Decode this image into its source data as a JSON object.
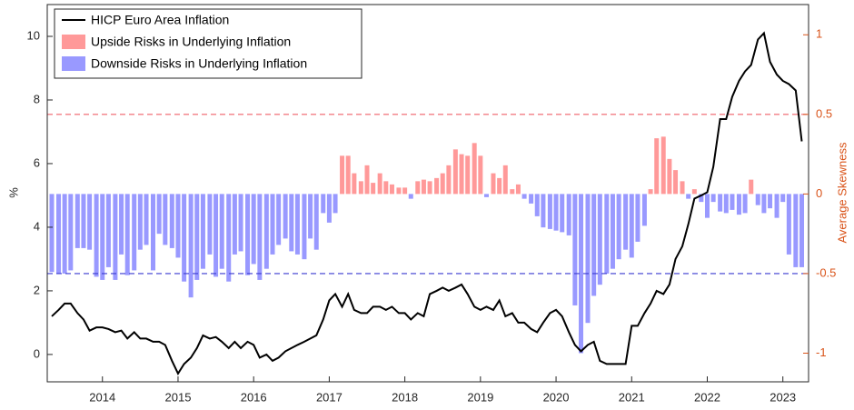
{
  "chart_data": {
    "type": "combo",
    "ylabel": "%",
    "y2label": "Average Skewness",
    "xlim": [
      2013.27,
      2023.34
    ],
    "xticks": [
      2014,
      2015,
      2016,
      2017,
      2018,
      2019,
      2020,
      2021,
      2022,
      2023
    ],
    "ylim": [
      -0.86,
      11
    ],
    "yticks": [
      0,
      2,
      4,
      6,
      8,
      10
    ],
    "y2lim": [
      -1.18,
      1.19
    ],
    "y2ticks": [
      -1,
      -0.5,
      0,
      0.5,
      1
    ],
    "y2color": "#d95319",
    "legend": "upper left",
    "reference_lines": [
      {
        "axis": "y2",
        "value": 0.5,
        "color": "#f0606a"
      },
      {
        "axis": "y2",
        "value": -0.5,
        "color": "#3a3ad0"
      }
    ],
    "x": [
      2013.33,
      2013.42,
      2013.5,
      2013.58,
      2013.67,
      2013.75,
      2013.83,
      2013.92,
      2014,
      2014.08,
      2014.17,
      2014.25,
      2014.33,
      2014.42,
      2014.5,
      2014.58,
      2014.67,
      2014.75,
      2014.83,
      2014.92,
      2015,
      2015.08,
      2015.17,
      2015.25,
      2015.33,
      2015.42,
      2015.5,
      2015.58,
      2015.67,
      2015.75,
      2015.83,
      2015.92,
      2016,
      2016.08,
      2016.17,
      2016.25,
      2016.33,
      2016.42,
      2016.5,
      2016.58,
      2016.67,
      2016.75,
      2016.83,
      2016.92,
      2017,
      2017.08,
      2017.17,
      2017.25,
      2017.33,
      2017.42,
      2017.5,
      2017.58,
      2017.67,
      2017.75,
      2017.83,
      2017.92,
      2018,
      2018.08,
      2018.17,
      2018.25,
      2018.33,
      2018.42,
      2018.5,
      2018.58,
      2018.67,
      2018.75,
      2018.83,
      2018.92,
      2019,
      2019.08,
      2019.17,
      2019.25,
      2019.33,
      2019.42,
      2019.5,
      2019.58,
      2019.67,
      2019.75,
      2019.83,
      2019.92,
      2020,
      2020.08,
      2020.17,
      2020.25,
      2020.33,
      2020.42,
      2020.5,
      2020.58,
      2020.67,
      2020.75,
      2020.83,
      2020.92,
      2021,
      2021.08,
      2021.17,
      2021.25,
      2021.33,
      2021.42,
      2021.5,
      2021.58,
      2021.67,
      2021.75,
      2021.83,
      2021.92,
      2022,
      2022.08,
      2022.17,
      2022.25,
      2022.33,
      2022.42,
      2022.5,
      2022.58,
      2022.67,
      2022.75,
      2022.83,
      2022.92,
      2023,
      2023.08,
      2023.17,
      2023.25
    ],
    "series": [
      {
        "name": "HICP Euro Area Inflation",
        "type": "line",
        "color": "#000000",
        "values": [
          1.2,
          1.4,
          1.6,
          1.6,
          1.3,
          1.1,
          0.75,
          0.85,
          0.85,
          0.8,
          0.7,
          0.75,
          0.5,
          0.7,
          0.5,
          0.5,
          0.4,
          0.4,
          0.3,
          -0.2,
          -0.6,
          -0.3,
          -0.1,
          0.2,
          0.6,
          0.5,
          0.55,
          0.4,
          0.2,
          0.4,
          0.2,
          0.4,
          0.3,
          -0.1,
          0.0,
          -0.2,
          -0.1,
          0.1,
          0.2,
          0.3,
          0.4,
          0.5,
          0.6,
          1.1,
          1.7,
          1.9,
          1.5,
          1.9,
          1.4,
          1.3,
          1.3,
          1.5,
          1.5,
          1.4,
          1.5,
          1.3,
          1.3,
          1.1,
          1.3,
          1.2,
          1.9,
          2.0,
          2.1,
          2.0,
          2.1,
          2.2,
          1.9,
          1.5,
          1.4,
          1.5,
          1.4,
          1.7,
          1.2,
          1.3,
          1.0,
          1.0,
          0.8,
          0.7,
          1.0,
          1.3,
          1.4,
          1.2,
          0.7,
          0.3,
          0.1,
          0.3,
          0.4,
          -0.2,
          -0.3,
          -0.3,
          -0.3,
          -0.3,
          0.9,
          0.9,
          1.3,
          1.6,
          2.0,
          1.9,
          2.2,
          3.0,
          3.4,
          4.1,
          4.9,
          5.0,
          5.1,
          5.9,
          7.4,
          7.4,
          8.1,
          8.6,
          8.9,
          9.1,
          9.9,
          10.1,
          9.2,
          8.8,
          8.6,
          8.5,
          8.3,
          6.7
        ]
      },
      {
        "name": "Upside Risks in Underlying Inflation",
        "type": "bar",
        "axis": "y2",
        "color": "#ff9999",
        "values": [
          null,
          null,
          null,
          null,
          null,
          null,
          null,
          null,
          null,
          null,
          null,
          null,
          null,
          null,
          null,
          null,
          null,
          null,
          null,
          null,
          null,
          null,
          null,
          null,
          null,
          null,
          null,
          null,
          null,
          null,
          null,
          null,
          null,
          null,
          null,
          null,
          null,
          null,
          null,
          null,
          null,
          null,
          null,
          null,
          null,
          null,
          0.24,
          0.24,
          0.13,
          0.08,
          0.18,
          0.07,
          0.13,
          0.08,
          0.06,
          0.04,
          0.04,
          null,
          0.08,
          0.09,
          0.08,
          0.1,
          0.13,
          0.18,
          0.28,
          0.25,
          0.24,
          0.32,
          0.24,
          null,
          0.13,
          0.1,
          0.18,
          0.03,
          0.06,
          null,
          null,
          null,
          null,
          null,
          null,
          null,
          null,
          null,
          null,
          null,
          null,
          null,
          null,
          null,
          null,
          null,
          null,
          null,
          null,
          0.03,
          0.35,
          0.36,
          0.22,
          0.15,
          0.08,
          null,
          0.03,
          null,
          null,
          null,
          null,
          null,
          null,
          null,
          null,
          0.09,
          null,
          null,
          null,
          null,
          null,
          null,
          null,
          null
        ]
      },
      {
        "name": "Downside Risks in Underlying Inflation",
        "type": "bar",
        "axis": "y2",
        "color": "#9999ff",
        "values": [
          -0.49,
          -0.5,
          -0.5,
          -0.48,
          -0.34,
          -0.34,
          -0.35,
          -0.52,
          -0.54,
          -0.46,
          -0.54,
          -0.38,
          -0.51,
          -0.48,
          -0.35,
          -0.32,
          -0.48,
          -0.25,
          -0.32,
          -0.34,
          -0.4,
          -0.55,
          -0.65,
          -0.54,
          -0.47,
          -0.38,
          -0.52,
          -0.47,
          -0.55,
          -0.38,
          -0.36,
          -0.51,
          -0.44,
          -0.54,
          -0.47,
          -0.38,
          -0.32,
          -0.28,
          -0.36,
          -0.38,
          -0.41,
          -0.28,
          -0.35,
          -0.12,
          -0.18,
          -0.12,
          null,
          null,
          null,
          null,
          null,
          null,
          null,
          null,
          null,
          null,
          null,
          -0.03,
          null,
          null,
          null,
          null,
          null,
          null,
          null,
          null,
          null,
          null,
          null,
          -0.02,
          null,
          null,
          null,
          null,
          null,
          -0.03,
          -0.06,
          -0.14,
          -0.21,
          -0.22,
          -0.23,
          -0.24,
          -0.26,
          -0.7,
          -1.0,
          -0.81,
          -0.64,
          -0.57,
          -0.5,
          -0.47,
          -0.41,
          -0.35,
          -0.4,
          -0.3,
          -0.2,
          null,
          null,
          null,
          null,
          null,
          null,
          -0.03,
          null,
          -0.05,
          -0.15,
          -0.05,
          -0.11,
          -0.12,
          -0.1,
          -0.13,
          -0.12,
          null,
          -0.07,
          -0.12,
          -0.09,
          -0.15,
          -0.05,
          -0.38,
          -0.46,
          -0.46
        ]
      }
    ]
  }
}
